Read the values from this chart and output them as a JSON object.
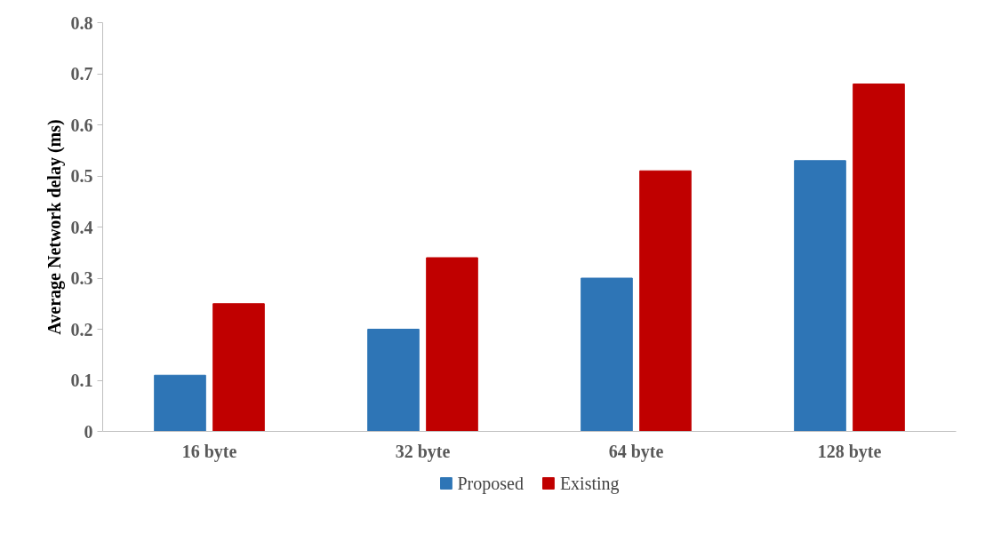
{
  "chart_data": {
    "type": "bar",
    "ylabel": "Average Network delay (ms)",
    "categories": [
      "16 byte",
      "32 byte",
      "64 byte",
      "128 byte"
    ],
    "series": [
      {
        "name": "Proposed",
        "color": "#2e75b6",
        "values": [
          0.11,
          0.2,
          0.3,
          0.53
        ]
      },
      {
        "name": "Existing",
        "color": "#c00000",
        "values": [
          0.25,
          0.34,
          0.51,
          0.68
        ]
      }
    ],
    "ylim": [
      0,
      0.8
    ],
    "yticks": [
      0,
      0.1,
      0.2,
      0.3,
      0.4,
      0.5,
      0.6,
      0.7,
      0.8
    ],
    "grid": false,
    "legend": "bottom"
  }
}
